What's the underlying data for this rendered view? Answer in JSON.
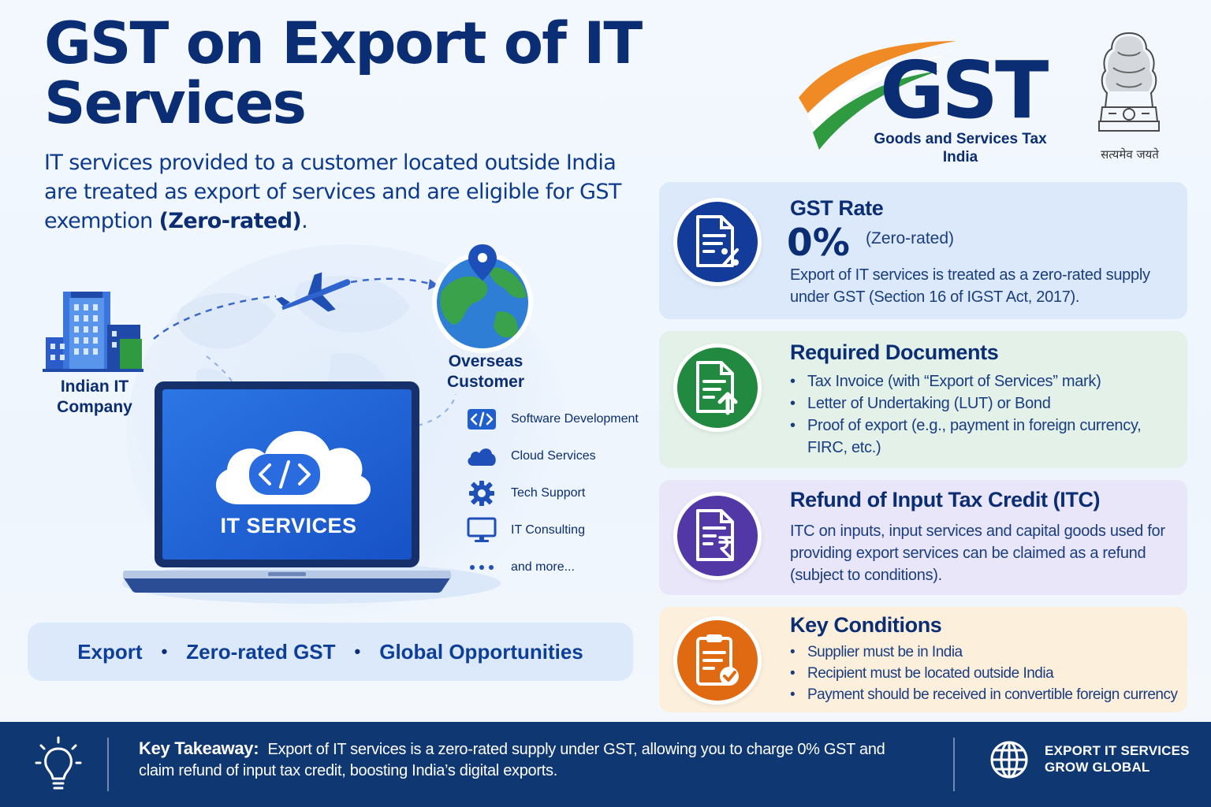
{
  "header": {
    "title": "GST on Export of IT Services",
    "subtitle_part1": "IT services provided to a customer located outside India are treated as export of services and are eligible for GST exemption ",
    "subtitle_bold": "(Zero-rated)",
    "subtitle_end": "."
  },
  "logo": {
    "word": "GST",
    "subtitle": "Goods and Services Tax India",
    "emblem_motto": "सत्यमेव जयते",
    "colors": {
      "saffron": "#f08a24",
      "white": "#ffffff",
      "green": "#2f9a3f",
      "navy": "#0b2d73"
    }
  },
  "illustration": {
    "company_label": "Indian IT Company",
    "customer_label": "Overseas Customer",
    "laptop_text": "IT SERVICES",
    "services": [
      {
        "icon": "code-icon",
        "label": "Software Development"
      },
      {
        "icon": "cloud-icon",
        "label": "Cloud Services"
      },
      {
        "icon": "gear-icon",
        "label": "Tech Support"
      },
      {
        "icon": "monitor-icon",
        "label": "IT Consulting"
      },
      {
        "icon": "ellipsis-icon",
        "label": "and more..."
      }
    ]
  },
  "band": {
    "items": [
      "Export",
      "Zero-rated GST",
      "Global Opportunities"
    ],
    "separator": "•"
  },
  "cards": {
    "rate": {
      "title": "GST Rate",
      "value": "0%",
      "note": "(Zero-rated)",
      "body": "Export of IT services is treated as a zero-rated supply under GST (Section 16 of IGST Act, 2017).",
      "color": "#133c9a"
    },
    "documents": {
      "title": "Required Documents",
      "items": [
        "Tax Invoice (with “Export of Services” mark)",
        "Letter of Undertaking (LUT) or Bond",
        "Proof of export (e.g., payment in foreign currency, FIRC, etc.)"
      ],
      "color": "#228a40"
    },
    "refund": {
      "title": "Refund of Input Tax Credit (ITC)",
      "body": "ITC on inputs, input services and capital goods used for providing export services can be claimed as a refund (subject to conditions).",
      "color": "#5237a7"
    },
    "conditions": {
      "title": "Key Conditions",
      "items": [
        "Supplier must be in India",
        "Recipient must be located outside India",
        "Payment should be received in convertible foreign currency"
      ],
      "color": "#e06a12"
    }
  },
  "footer": {
    "takeaway_label": "Key Takeaway:",
    "takeaway_text": "Export of IT services is a zero-rated supply under GST, allowing you to charge 0% GST and claim refund of input tax credit, boosting India’s digital exports.",
    "right_line1": "EXPORT IT SERVICES",
    "right_line2": "GROW GLOBAL"
  }
}
